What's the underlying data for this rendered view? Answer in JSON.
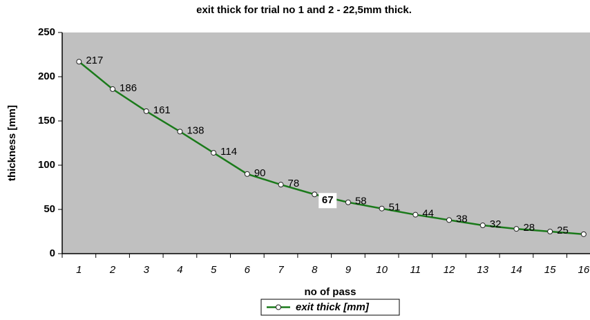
{
  "chart_data": {
    "type": "line",
    "title": "exit thick for trial no 1 and 2 - 22,5mm thick.",
    "x_label": "no of pass",
    "y_label": "thickness [mm]",
    "categories": [
      "1",
      "2",
      "3",
      "4",
      "5",
      "6",
      "7",
      "8",
      "9",
      "10",
      "11",
      "12",
      "13",
      "14",
      "15",
      "16"
    ],
    "series": [
      {
        "name": "exit thick [mm]",
        "color": "#1a7a1a",
        "values": [
          217,
          186,
          161,
          138,
          114,
          90,
          78,
          67,
          58,
          51,
          44,
          38,
          32,
          28,
          25,
          22
        ]
      }
    ],
    "highlight_index": 7,
    "ylim": [
      0,
      250
    ],
    "yticks": [
      0,
      50,
      100,
      150,
      200,
      250
    ],
    "legend": "bottom",
    "background": "#c0c0c0"
  }
}
